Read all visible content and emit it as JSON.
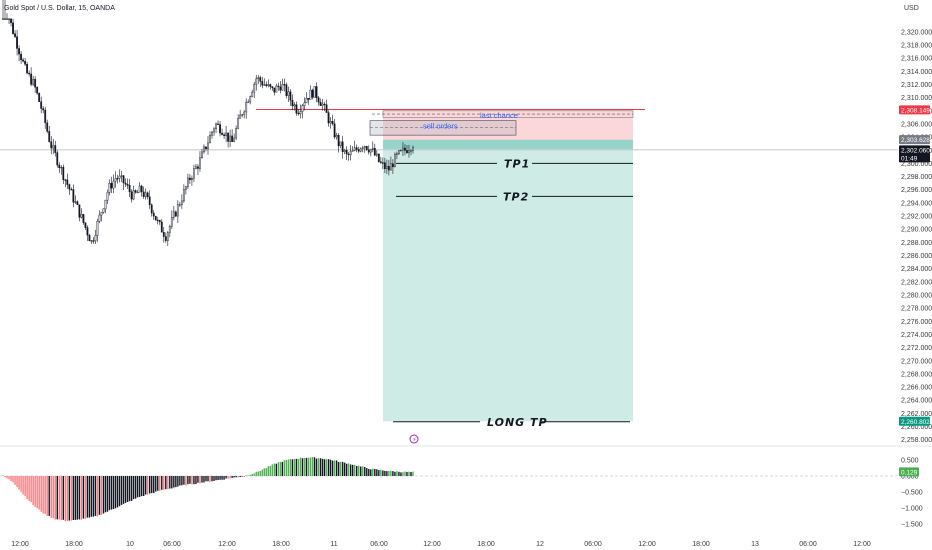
{
  "chart_data": {
    "type": "candlestick",
    "title": "Gold Spot / U.S. Dollar, 15, OANDA",
    "currency": "USD",
    "y_ticks": [
      "2,320.000",
      "2,318.000",
      "2,316.000",
      "2,314.000",
      "2,312.000",
      "2,310.000",
      "2,308.000",
      "2,306.000",
      "2,304.000",
      "2,302.000",
      "2,300.000",
      "2,298.000",
      "2,296.000",
      "2,294.000",
      "2,292.000",
      "2,290.000",
      "2,288.000",
      "2,286.000",
      "2,284.000",
      "2,282.000",
      "2,280.000",
      "2,278.000",
      "2,276.000",
      "2,274.000",
      "2,272.000",
      "2,270.000",
      "2,268.000",
      "2,266.000",
      "2,264.000",
      "2,262.000",
      "2,260.000",
      "2,258.000"
    ],
    "y_tick_values": [
      2320,
      2318,
      2316,
      2314,
      2312,
      2310,
      2308,
      2306,
      2304,
      2302,
      2300,
      2298,
      2296,
      2294,
      2292,
      2290,
      2288,
      2286,
      2284,
      2282,
      2280,
      2278,
      2276,
      2274,
      2272,
      2270,
      2268,
      2266,
      2264,
      2262,
      2260,
      2258
    ],
    "ylim": [
      2257.5,
      2321.5
    ],
    "x_ticks": [
      "12:00",
      "18:00",
      "10",
      "06:00",
      "12:00",
      "18:00",
      "11",
      "06:00",
      "12:00",
      "18:00",
      "12",
      "06:00",
      "12:00",
      "18:00",
      "13",
      "06:00",
      "12:00"
    ],
    "price_path": [
      2330,
      2322,
      2318,
      2314,
      2312,
      2308,
      2303,
      2300,
      2297,
      2294,
      2291,
      2288,
      2292,
      2296,
      2298,
      2297,
      2295,
      2296,
      2294,
      2291,
      2289,
      2292,
      2295,
      2298,
      2300,
      2303,
      2306,
      2305,
      2303,
      2307,
      2310,
      2313,
      2312,
      2311,
      2312,
      2310,
      2308,
      2310,
      2311,
      2309,
      2306,
      2303,
      2301,
      2302,
      2303,
      2302,
      2300,
      2299,
      2301,
      2302,
      2303
    ],
    "price_tags": [
      {
        "label": "2,308.149",
        "value": 2308.149,
        "color": "#f23645"
      },
      {
        "label": "2,303.628",
        "value": 2303.628,
        "color": "#787b86"
      },
      {
        "label": "2,302.060",
        "value": 2302.06,
        "color": "#131722"
      },
      {
        "label": "01:49",
        "value": 2301.2,
        "color": "#131722"
      },
      {
        "label": "2,260.802",
        "value": 2260.802,
        "color": "#089981"
      }
    ],
    "annotations": {
      "last_chance": "last chance",
      "sell_orders": "sell orders",
      "tp1": "TP1",
      "tp2": "TP2",
      "long_tp": "LONG TP"
    },
    "levels": {
      "resistance": 2308.2,
      "entry": 2303.6,
      "stop": 2308.15,
      "last_chance_top": 2308.0,
      "last_chance_bottom": 2307.0,
      "sell_orders_top": 2306.5,
      "sell_orders_bottom": 2304.3,
      "tp1": 2300.0,
      "tp2": 2295.0,
      "long_tp": 2260.8
    },
    "indicator": {
      "y_ticks": [
        "0.500",
        "0.000",
        "−0.500",
        "−1.000",
        "−1.500"
      ],
      "y_tick_values": [
        0.5,
        0,
        -0.5,
        -1,
        -1.5
      ],
      "ylim": [
        -1.75,
        0.75
      ],
      "current_label": "0.129",
      "current_value": 0.129,
      "histogram_path": [
        0.0,
        -0.2,
        -0.6,
        -0.95,
        -1.2,
        -1.35,
        -1.4,
        -1.38,
        -1.32,
        -1.25,
        -1.1,
        -0.95,
        -0.8,
        -0.65,
        -0.55,
        -0.45,
        -0.38,
        -0.3,
        -0.25,
        -0.2,
        -0.15,
        -0.1,
        -0.05,
        0.0,
        0.1,
        0.25,
        0.4,
        0.5,
        0.55,
        0.58,
        0.56,
        0.52,
        0.45,
        0.38,
        0.3,
        0.22,
        0.18,
        0.15,
        0.13,
        0.12
      ]
    }
  }
}
